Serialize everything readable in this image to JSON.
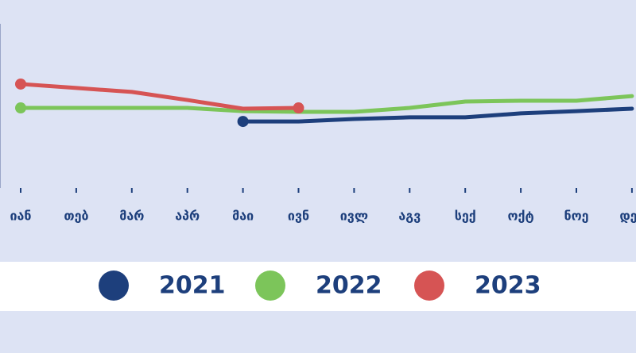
{
  "chart_data": {
    "type": "line",
    "categories": [
      "იან",
      "თებ",
      "მარ",
      "აპრ",
      "მაი",
      "ივნ",
      "ივლ",
      "აგვ",
      "სექ",
      "ოქტ",
      "ნოე",
      "დეკ"
    ],
    "series": [
      {
        "name": "2021",
        "color": "#1d3f7c",
        "values": [
          null,
          null,
          null,
          null,
          35.4,
          35.4,
          36.7,
          37.6,
          37.6,
          39.7,
          40.9,
          42.2
        ]
      },
      {
        "name": "2022",
        "color": "#7cc55a",
        "values": [
          42.6,
          42.6,
          42.6,
          42.6,
          40.9,
          40.5,
          40.5,
          42.6,
          46.0,
          46.4,
          46.4,
          48.9
        ]
      },
      {
        "name": "2023",
        "color": "#d65454",
        "values": [
          55.3,
          53.2,
          51.1,
          46.8,
          42.2,
          42.6,
          null,
          null,
          null,
          null,
          null,
          null
        ]
      }
    ],
    "ylim": [
      0,
      100
    ]
  }
}
